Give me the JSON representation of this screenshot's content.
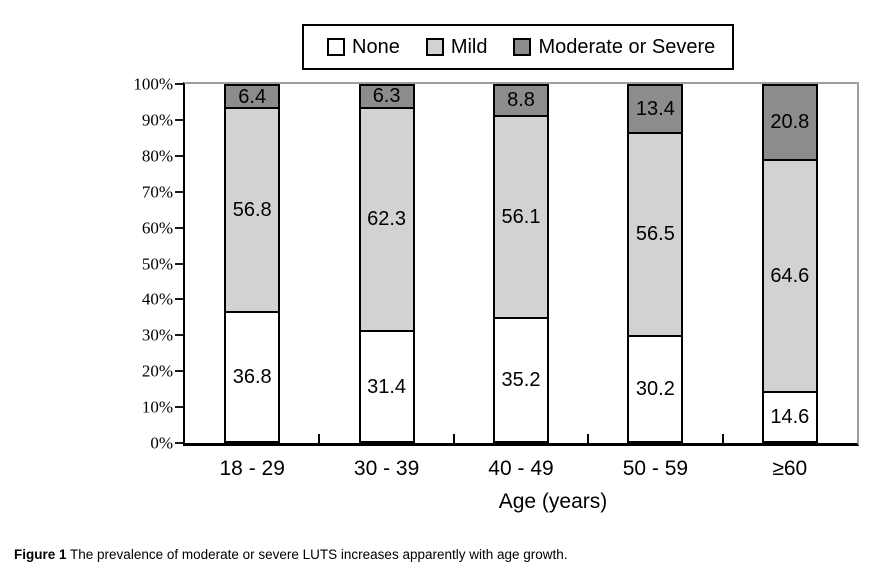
{
  "colors": {
    "none": "#ffffff",
    "mild": "#d2d2d2",
    "moderate_or_severe": "#8c8c8c",
    "bar_border": "#000000",
    "frame_gray": "#9e9e9e",
    "axis_black": "#000000"
  },
  "legend": {
    "items": [
      "None",
      "Mild",
      "Moderate or Severe"
    ]
  },
  "chart_data": {
    "type": "bar",
    "stacked": true,
    "categories": [
      "18 - 29",
      "30 - 39",
      "40 - 49",
      "50 - 59",
      "≥60"
    ],
    "series": [
      {
        "name": "None",
        "color": "#ffffff",
        "values": [
          36.8,
          31.4,
          35.2,
          30.2,
          14.6
        ]
      },
      {
        "name": "Mild",
        "color": "#d2d2d2",
        "values": [
          56.8,
          62.3,
          56.1,
          56.5,
          64.6
        ]
      },
      {
        "name": "Moderate or Severe",
        "color": "#8c8c8c",
        "values": [
          6.4,
          6.3,
          8.8,
          13.4,
          20.8
        ]
      }
    ],
    "title": "",
    "xlabel": "Age (years)",
    "ylabel": "",
    "ylim": [
      0,
      100
    ],
    "ytick_step": 10,
    "ytick_labels": [
      "0%",
      "10%",
      "20%",
      "30%",
      "40%",
      "50%",
      "60%",
      "70%",
      "80%",
      "90%",
      "100%"
    ],
    "legend_position": "top",
    "grid": false
  },
  "caption": {
    "label": "Figure 1",
    "text": "The prevalence of moderate or severe LUTS increases apparently with age growth."
  }
}
